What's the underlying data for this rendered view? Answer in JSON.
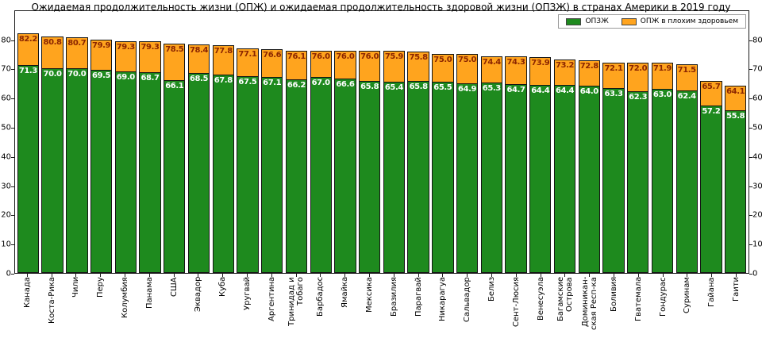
{
  "title": "Ожидаемая продолжительность жизни (ОПЖ) и ожидаемая продолжительность здоровой жизни (ОПЗЖ) в странах Америки в 2019 году",
  "legend": [
    {
      "label": "ОПЗЖ",
      "color": "#1e8a1e"
    },
    {
      "label": "ОПЖ в плохим здоровьем",
      "color": "#ffa41e"
    }
  ],
  "colors": {
    "healthy_bar": "#1e8a1e",
    "poor_health_bar": "#ffa41e",
    "healthy_value_label": "#ffffff",
    "total_value_label": "#8b2500",
    "axis": "#1a1a1a",
    "background": "#ffffff"
  },
  "chart_data": {
    "type": "bar",
    "stacked": true,
    "title": "Ожидаемая продолжительность жизни (ОПЖ) и ожидаемая продолжительность здоровой жизни (ОПЗЖ) в странах Америки в 2019 году",
    "categories": [
      "Канада",
      "Коста-Рика",
      "Чили",
      "Перу",
      "Колумбия",
      "Панама",
      "США",
      "Эквадор",
      "Куба",
      "Уругвай",
      "Аргентина",
      "Тринидад и\nТобаго",
      "Барбадос",
      "Ямайка",
      "Мексика",
      "Бразилия",
      "Парагвай",
      "Никарагуа",
      "Сальвадор",
      "Белиз",
      "Сент-Люсия",
      "Венесуэла",
      "Багамские\nОстрова",
      "Доминикан-\nская Респ-ка",
      "Боливия",
      "Гватемала",
      "Гондурас",
      "Суринам",
      "Гайана",
      "Гаити"
    ],
    "series": [
      {
        "name": "ОПЗЖ",
        "color": "#1e8a1e",
        "label_color": "#ffffff",
        "values": [
          71.3,
          70.0,
          70.0,
          69.5,
          69.0,
          68.7,
          66.1,
          68.5,
          67.8,
          67.5,
          67.1,
          66.2,
          67.0,
          66.6,
          65.8,
          65.4,
          65.8,
          65.5,
          64.9,
          65.3,
          64.7,
          64.4,
          64.4,
          64.0,
          63.3,
          62.3,
          63.0,
          62.4,
          57.2,
          55.8
        ]
      },
      {
        "name": "ОПЖ в плохим здоровьем",
        "color": "#ffa41e",
        "label_color": "#8b2500",
        "values_are": "total ОПЖ; orange segment height = total - ОПЗЖ",
        "values": [
          82.2,
          80.8,
          80.7,
          79.9,
          79.3,
          79.3,
          78.5,
          78.4,
          77.8,
          77.1,
          76.6,
          76.1,
          76.0,
          76.0,
          76.0,
          75.9,
          75.8,
          75.0,
          75.0,
          74.4,
          74.3,
          73.9,
          73.2,
          72.8,
          72.1,
          72.0,
          71.9,
          71.5,
          65.7,
          64.1
        ]
      }
    ],
    "xlabel": "",
    "ylabel": "",
    "ylim": [
      0,
      90.2
    ],
    "yticks": [
      0,
      10,
      20,
      30,
      40,
      50,
      60,
      70,
      80
    ],
    "yticks_right": true,
    "grid": false,
    "legend_position": "top-right",
    "value_labels": "both segments, one decimal"
  }
}
